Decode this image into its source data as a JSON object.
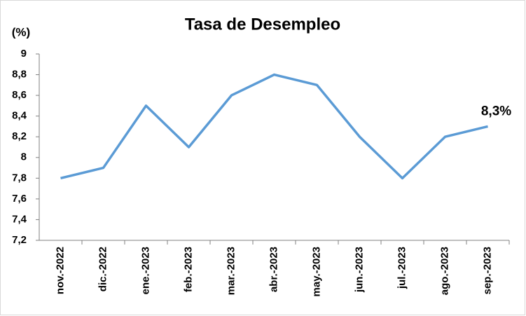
{
  "chart_data": {
    "type": "line",
    "title": "Tasa de Desempleo",
    "y_label": "(%)",
    "categories": [
      "nov.-2022",
      "dic.-2022",
      "ene.-2023",
      "feb.-2023",
      "mar.-2023",
      "abr.-2023",
      "may.-2023",
      "jun.-2023",
      "jul.-2023",
      "ago.-2023",
      "sep.-2023"
    ],
    "values": [
      7.8,
      7.9,
      8.5,
      8.1,
      8.6,
      8.8,
      8.7,
      8.2,
      7.8,
      8.2,
      8.3
    ],
    "value_labels": [
      null,
      null,
      null,
      null,
      null,
      null,
      null,
      null,
      null,
      null,
      "8,3%"
    ],
    "color": "#5b9bd5",
    "ylim": [
      7.2,
      9
    ],
    "yticks": [
      {
        "value": 7.2,
        "label": "7,2"
      },
      {
        "value": 7.4,
        "label": "7,4"
      },
      {
        "value": 7.6,
        "label": "7,6"
      },
      {
        "value": 7.8,
        "label": "7,8"
      },
      8,
      {
        "value": 8.2,
        "label": "8,2"
      },
      {
        "value": 8.4,
        "label": "8,4"
      },
      {
        "value": 8.6,
        "label": "8,6"
      },
      {
        "value": 8.8,
        "label": "8,8"
      },
      9
    ],
    "grid": false
  }
}
